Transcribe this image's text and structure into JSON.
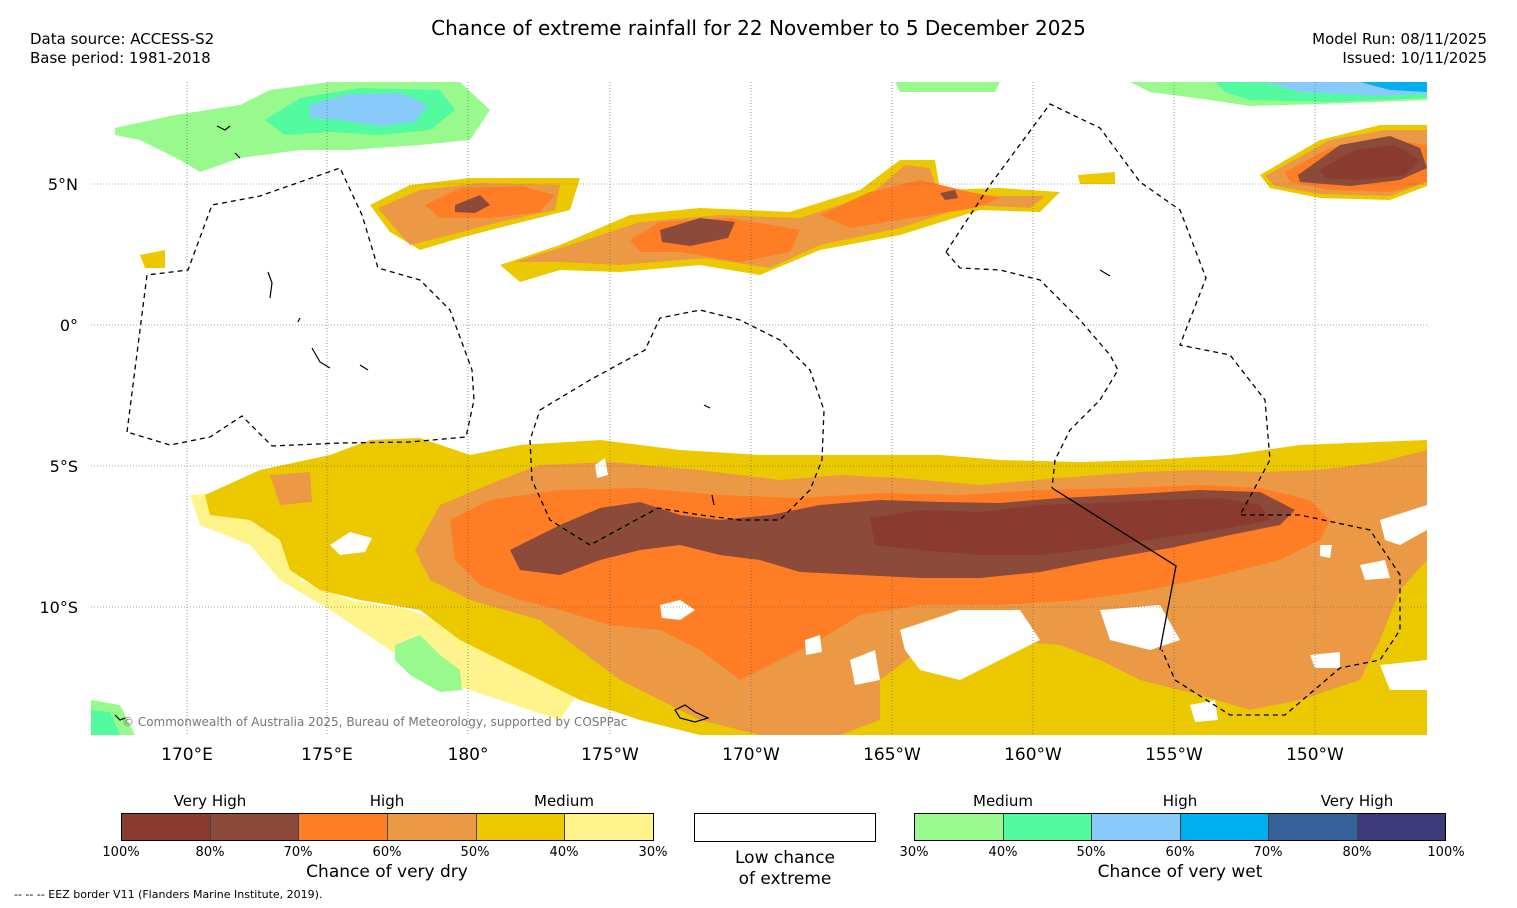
{
  "header": {
    "title": "Chance of extreme rainfall for 22 November to 5 December 2025",
    "data_source": "Data source: ACCESS-S2",
    "base_period": "Base period: 1981-2018",
    "model_run": "Model Run: 08/11/2025",
    "issued": "Issued: 10/11/2025"
  },
  "map": {
    "lat_labels": [
      "5°N",
      "0°",
      "5°S",
      "10°S"
    ],
    "lon_labels": [
      "170°E",
      "175°E",
      "180°",
      "175°W",
      "170°W",
      "165°W",
      "160°W",
      "155°W",
      "150°W"
    ],
    "copyright": "© Commonwealth of Australia 2025, Bureau of Meteorology, supported by COSPPac"
  },
  "legend": {
    "dry": {
      "categories": [
        "Very High",
        "High",
        "Medium"
      ],
      "ticks": [
        "100%",
        "80%",
        "70%",
        "60%",
        "50%",
        "40%",
        "30%"
      ],
      "colors": [
        "#8b3a2f",
        "#8b4a3a",
        "#ff7d25",
        "#eb9945",
        "#ecc800",
        "#fff48c"
      ],
      "title": "Chance of very dry"
    },
    "neutral": {
      "title_line1": "Low chance",
      "title_line2": "of extreme"
    },
    "wet": {
      "categories": [
        "Medium",
        "High",
        "Very High"
      ],
      "ticks": [
        "30%",
        "40%",
        "50%",
        "60%",
        "70%",
        "80%",
        "100%"
      ],
      "colors": [
        "#98fa8c",
        "#52faa0",
        "#88cbfa",
        "#00b0ee",
        "#366199",
        "#3d3a7a"
      ],
      "title": "Chance of very wet"
    },
    "eez_note": "--  --  -- EEZ border V11 (Flanders Marine Institute, 2019)."
  }
}
